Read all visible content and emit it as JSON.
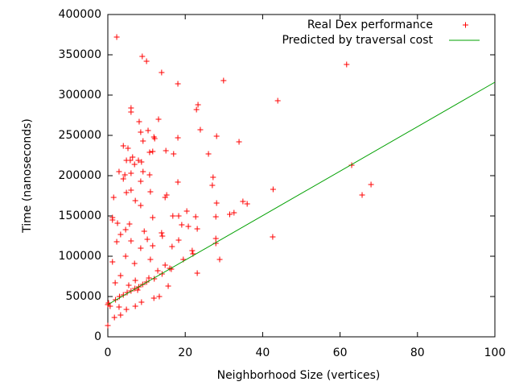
{
  "chart_data": {
    "type": "scatter",
    "xlabel": "Neighborhood Size (vertices)",
    "ylabel": "Time (nanoseconds)",
    "xlim": [
      0,
      100
    ],
    "xticks": [
      0,
      20,
      40,
      60,
      80,
      100
    ],
    "ylim": [
      0,
      400000
    ],
    "yticks": [
      0,
      50000,
      100000,
      150000,
      200000,
      250000,
      300000,
      350000,
      400000
    ],
    "legend": "top right",
    "series": [
      {
        "name": "Real Dex performance",
        "type": "scatter",
        "color": "#ff0000",
        "x": [
          2.3,
          8.9,
          10,
          13.9,
          18.1,
          29.9,
          61.7,
          43.9,
          23.3,
          22.9,
          6,
          6,
          13.1,
          8.1,
          23.9,
          10.4,
          8.5,
          11.9,
          18.1,
          28.1,
          12.1,
          9.1,
          33.9,
          4,
          5.2,
          15,
          11.6,
          10.8,
          17,
          26,
          6.4,
          4.8,
          5.8,
          7.9,
          8.7,
          6.9,
          63,
          2.9,
          9.1,
          4.4,
          6,
          27.2,
          10.8,
          4,
          8.5,
          18.1,
          27,
          68,
          6,
          42.7,
          11,
          4.8,
          15.2,
          14.8,
          65.7,
          1.5,
          7.1,
          34.9,
          36,
          8.5,
          20.4,
          28.1,
          32.6,
          31.5,
          1.2,
          1.2,
          11.6,
          16.8,
          18.3,
          22.7,
          27.9,
          2.5,
          5.6,
          19.1,
          20.8,
          4.6,
          9.4,
          23.1,
          3.3,
          13.9,
          14.1,
          42.6,
          27.9,
          10.2,
          6,
          18.3,
          2.3,
          27.9,
          11.6,
          8.5,
          21.8,
          22,
          16.6,
          4.6,
          11,
          19.5,
          28.9,
          1.2,
          6.9,
          14.8,
          16.4,
          12.9,
          23.1,
          3.3,
          10.6,
          7.1,
          1.9,
          5.4,
          15.6,
          7.7,
          0.2,
          0,
          0.6,
          2.9,
          4.8,
          13.3,
          11.9,
          8.7,
          7.1,
          1.7,
          3.3,
          0,
          2,
          3,
          4,
          5,
          6,
          7,
          8,
          9,
          10,
          12,
          14,
          16
        ],
        "values": [
          372000,
          348000,
          342000,
          328000,
          314000,
          318000,
          338000,
          293000,
          288000,
          282000,
          284000,
          279000,
          270000,
          267000,
          257000,
          256000,
          254000,
          248000,
          247000,
          249000,
          246000,
          243000,
          242000,
          237000,
          234000,
          231000,
          230000,
          229000,
          227000,
          227000,
          223000,
          219000,
          219000,
          219000,
          217000,
          214000,
          213000,
          205000,
          205000,
          201000,
          203000,
          198000,
          201000,
          196000,
          193000,
          192000,
          188000,
          189000,
          182000,
          183000,
          180000,
          179000,
          176000,
          173000,
          176000,
          173000,
          169000,
          168000,
          165000,
          163000,
          156000,
          166000,
          154000,
          152000,
          148000,
          145000,
          148000,
          150000,
          150000,
          149000,
          149000,
          141000,
          140000,
          139000,
          137000,
          133000,
          131000,
          134000,
          127000,
          129000,
          125000,
          124000,
          122000,
          121000,
          119000,
          120000,
          118000,
          116000,
          113000,
          110000,
          107000,
          103000,
          112000,
          100000,
          96000,
          96000,
          96000,
          93000,
          91000,
          89000,
          84000,
          82000,
          79000,
          76000,
          73000,
          70000,
          67000,
          64000,
          63000,
          58000,
          42000,
          40000,
          38000,
          37000,
          34000,
          50000,
          48000,
          43000,
          38000,
          24000,
          27000,
          14000,
          46000,
          50000,
          52000,
          55000,
          57000,
          60000,
          62000,
          65000,
          68000,
          72000,
          78000,
          85000
        ]
      },
      {
        "name": "Predicted by traversal cost",
        "type": "line",
        "color": "#00a000",
        "x": [
          0,
          100
        ],
        "values": [
          40000,
          316000
        ]
      }
    ]
  }
}
